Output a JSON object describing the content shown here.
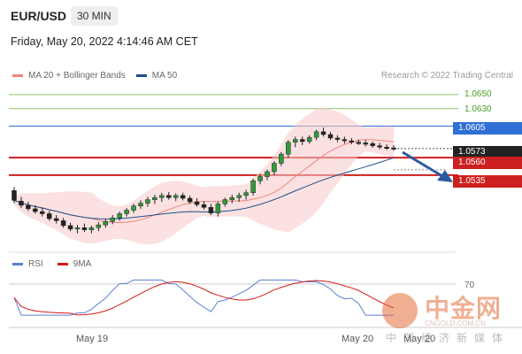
{
  "header": {
    "pair": "EUR/USD",
    "timeframe": "30 MIN"
  },
  "datetime": "Friday, May 20, 2022 4:14:46 AM CET",
  "legend": {
    "ma20": {
      "label": "MA 20 + Bollinger Bands",
      "color": "#f0847a"
    },
    "ma50": {
      "label": "MA 50",
      "color": "#1f4e8c"
    }
  },
  "credit": "Research © 2022 Trading Central",
  "levels": [
    {
      "value": "1.0650",
      "style": "green-text"
    },
    {
      "value": "1.0630",
      "style": "green-text"
    },
    {
      "value": "1.0605",
      "style": "blue-tag"
    },
    {
      "value": "1.0573",
      "style": "dark-tag"
    },
    {
      "value": "1.0560",
      "style": "red-tag"
    },
    {
      "value": "1.0535",
      "style": "red-tag"
    }
  ],
  "sublegend": {
    "rsi": {
      "label": "RSI",
      "color": "#5b7fd6"
    },
    "ma9": {
      "label": "9MA",
      "color": "#d11b1b"
    }
  },
  "rsi_level": "70",
  "x_labels": [
    "May 19",
    "May 20",
    "May 20"
  ],
  "watermark": {
    "name": "中金网",
    "domain": "CNGOLD.COM.CN",
    "subtitle": "中国经济新媒体"
  },
  "chart_data": {
    "type": "candlestick",
    "price_range": [
      1.0425,
      1.0665
    ],
    "rsi_range": [
      20,
      80
    ],
    "horizontal_levels": [
      1.065,
      1.063,
      1.0605,
      1.0573,
      1.056,
      1.0535
    ],
    "candles": [
      [
        1.0513,
        1.0518,
        1.0495,
        1.0499
      ],
      [
        1.0498,
        1.0504,
        1.0488,
        1.0492
      ],
      [
        1.0492,
        1.0497,
        1.0484,
        1.0487
      ],
      [
        1.0487,
        1.0492,
        1.048,
        1.0483
      ],
      [
        1.0483,
        1.0489,
        1.0476,
        1.048
      ],
      [
        1.048,
        1.0484,
        1.047,
        1.0473
      ],
      [
        1.0473,
        1.0478,
        1.0466,
        1.047
      ],
      [
        1.047,
        1.0474,
        1.046,
        1.0463
      ],
      [
        1.0463,
        1.0467,
        1.0455,
        1.0458
      ],
      [
        1.0458,
        1.0464,
        1.0452,
        1.046
      ],
      [
        1.046,
        1.0466,
        1.0454,
        1.0457
      ],
      [
        1.0457,
        1.0463,
        1.0452,
        1.046
      ],
      [
        1.046,
        1.0468,
        1.0455,
        1.0464
      ],
      [
        1.0464,
        1.0472,
        1.046,
        1.0469
      ],
      [
        1.0469,
        1.0478,
        1.0465,
        1.0474
      ],
      [
        1.0474,
        1.0483,
        1.047,
        1.048
      ],
      [
        1.048,
        1.0488,
        1.0476,
        1.0485
      ],
      [
        1.0485,
        1.0494,
        1.0481,
        1.0491
      ],
      [
        1.0491,
        1.0499,
        1.0487,
        1.0495
      ],
      [
        1.0495,
        1.0504,
        1.049,
        1.05
      ],
      [
        1.05,
        1.0507,
        1.0494,
        1.0503
      ],
      [
        1.0503,
        1.051,
        1.0497,
        1.0506
      ],
      [
        1.0506,
        1.0511,
        1.05,
        1.0503
      ],
      [
        1.0503,
        1.0509,
        1.0498,
        1.0506
      ],
      [
        1.0506,
        1.051,
        1.0499,
        1.0502
      ],
      [
        1.0502,
        1.0506,
        1.0494,
        1.0497
      ],
      [
        1.0497,
        1.0502,
        1.049,
        1.0493
      ],
      [
        1.0493,
        1.0498,
        1.0486,
        1.0489
      ],
      [
        1.0489,
        1.0494,
        1.0478,
        1.0481
      ],
      [
        1.0481,
        1.0497,
        1.0476,
        1.0494
      ],
      [
        1.0494,
        1.0503,
        1.049,
        1.05
      ],
      [
        1.05,
        1.0507,
        1.0495,
        1.0503
      ],
      [
        1.0503,
        1.051,
        1.0497,
        1.0506
      ],
      [
        1.0506,
        1.0514,
        1.05,
        1.051
      ],
      [
        1.051,
        1.053,
        1.0506,
        1.0527
      ],
      [
        1.0527,
        1.0537,
        1.0522,
        1.0533
      ],
      [
        1.0533,
        1.0543,
        1.0528,
        1.054
      ],
      [
        1.054,
        1.0555,
        1.0535,
        1.0552
      ],
      [
        1.0552,
        1.0568,
        1.0548,
        1.0565
      ],
      [
        1.0565,
        1.0585,
        1.056,
        1.0582
      ],
      [
        1.0582,
        1.059,
        1.0575,
        1.0586
      ],
      [
        1.0586,
        1.059,
        1.0578,
        1.0583
      ],
      [
        1.0583,
        1.0592,
        1.058,
        1.0589
      ],
      [
        1.0589,
        1.06,
        1.0585,
        1.0597
      ],
      [
        1.0597,
        1.0603,
        1.059,
        1.0593
      ],
      [
        1.0593,
        1.0597,
        1.0585,
        1.0588
      ],
      [
        1.0588,
        1.0592,
        1.0582,
        1.0586
      ],
      [
        1.0586,
        1.059,
        1.058,
        1.0584
      ],
      [
        1.0584,
        1.0588,
        1.0579,
        1.0582
      ],
      [
        1.0582,
        1.0586,
        1.0578,
        1.0581
      ],
      [
        1.0581,
        1.0585,
        1.0576,
        1.058
      ],
      [
        1.058,
        1.0583,
        1.0574,
        1.0577
      ],
      [
        1.0577,
        1.0581,
        1.0572,
        1.0575
      ],
      [
        1.0575,
        1.0579,
        1.0571,
        1.0574
      ],
      [
        1.0574,
        1.0578,
        1.057,
        1.0573
      ]
    ]
  }
}
